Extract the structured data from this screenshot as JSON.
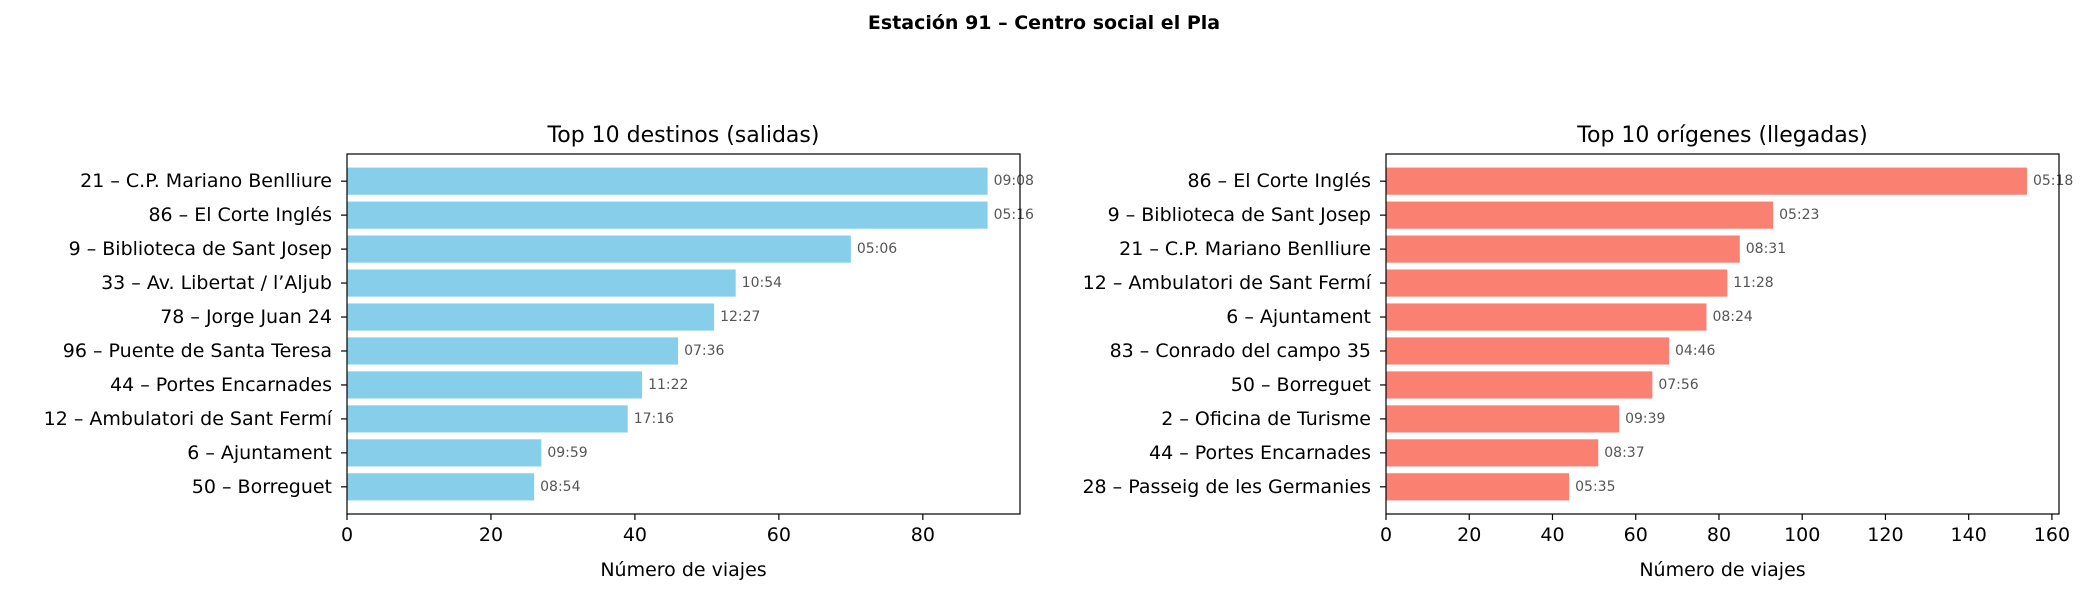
{
  "suptitle": "Estación 91 – Centro social el Pla",
  "chart_data": [
    {
      "type": "bar",
      "orientation": "horizontal",
      "title": "Top 10 destinos (salidas)",
      "xlabel": "Número de viajes",
      "ylabel": "",
      "xlim": [
        0,
        93.5
      ],
      "xticks": [
        0,
        20,
        40,
        60,
        80
      ],
      "color": "#87ceeb",
      "grid": false,
      "categories": [
        "21 – C.P. Mariano Benlliure",
        "86 – El Corte Inglés",
        "9 – Biblioteca de Sant Josep",
        "33 – Av. Libertat / l’Aljub",
        "78 – Jorge Juan 24",
        "96 – Puente de Santa Teresa",
        "44 – Portes Encarnades",
        "12 – Ambulatori de Sant Fermí",
        "6 – Ajuntament",
        "50 – Borreguet"
      ],
      "values": [
        89,
        89,
        70,
        54,
        51,
        46,
        41,
        39,
        27,
        26
      ],
      "bar_labels": [
        "09:08",
        "05:16",
        "05:06",
        "10:54",
        "12:27",
        "07:36",
        "11:22",
        "17:16",
        "09:59",
        "08:54"
      ]
    },
    {
      "type": "bar",
      "orientation": "horizontal",
      "title": "Top 10 orígenes (llegadas)",
      "xlabel": "Número de viajes",
      "ylabel": "",
      "xlim": [
        0,
        161.7
      ],
      "xticks": [
        0,
        20,
        40,
        60,
        80,
        100,
        120,
        140,
        160
      ],
      "color": "#fa8072",
      "grid": false,
      "categories": [
        "86 – El Corte Inglés",
        "9 – Biblioteca de Sant Josep",
        "21 – C.P. Mariano Benlliure",
        "12 – Ambulatori de Sant Fermí",
        "6 – Ajuntament",
        "83 – Conrado del campo 35",
        "50 – Borreguet",
        "2 – Oficina de Turisme",
        "44 – Portes Encarnades",
        "28 – Passeig de les Germanies"
      ],
      "values": [
        154,
        93,
        85,
        82,
        77,
        68,
        64,
        56,
        51,
        44
      ],
      "bar_labels": [
        "05:18",
        "05:23",
        "08:31",
        "11:28",
        "08:24",
        "04:46",
        "07:56",
        "09:39",
        "08:37",
        "05:35"
      ]
    }
  ]
}
